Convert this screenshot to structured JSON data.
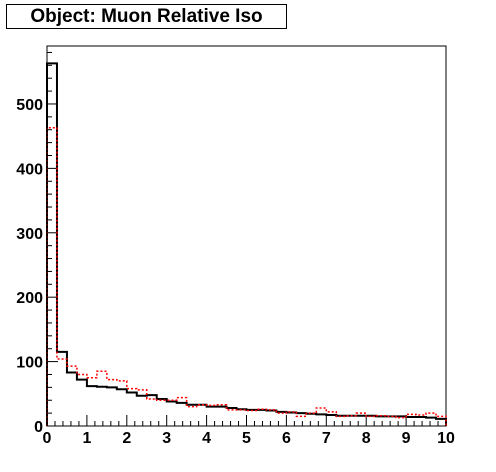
{
  "chart_data": {
    "type": "step",
    "title": "Object: Muon Relative Iso",
    "xlabel": "",
    "ylabel": "",
    "xlim": [
      0,
      10
    ],
    "ylim": [
      0,
      590
    ],
    "grid": false,
    "x_ticks": [
      0,
      1,
      2,
      3,
      4,
      5,
      6,
      7,
      8,
      9,
      10
    ],
    "y_ticks": [
      0,
      100,
      200,
      300,
      400,
      500
    ],
    "bin_width": 0.25,
    "series": [
      {
        "color": "#000000",
        "style": "solid",
        "values": [
          563,
          115,
          83,
          72,
          62,
          61,
          60,
          57,
          52,
          47,
          48,
          42,
          38,
          36,
          33,
          33,
          30,
          30,
          28,
          26,
          25,
          25,
          24,
          22,
          21,
          20,
          19,
          18,
          17,
          16,
          16,
          16,
          16,
          15,
          15,
          15,
          14,
          14,
          13,
          11
        ]
      },
      {
        "color": "#ff0000",
        "style": "dashed",
        "values": [
          463,
          104,
          93,
          80,
          75,
          85,
          72,
          70,
          58,
          56,
          42,
          40,
          40,
          44,
          30,
          33,
          32,
          33,
          25,
          25,
          24,
          26,
          25,
          20,
          22,
          15,
          20,
          28,
          22,
          15,
          16,
          20,
          15,
          16,
          15,
          13,
          18,
          17,
          20,
          15
        ]
      }
    ]
  }
}
